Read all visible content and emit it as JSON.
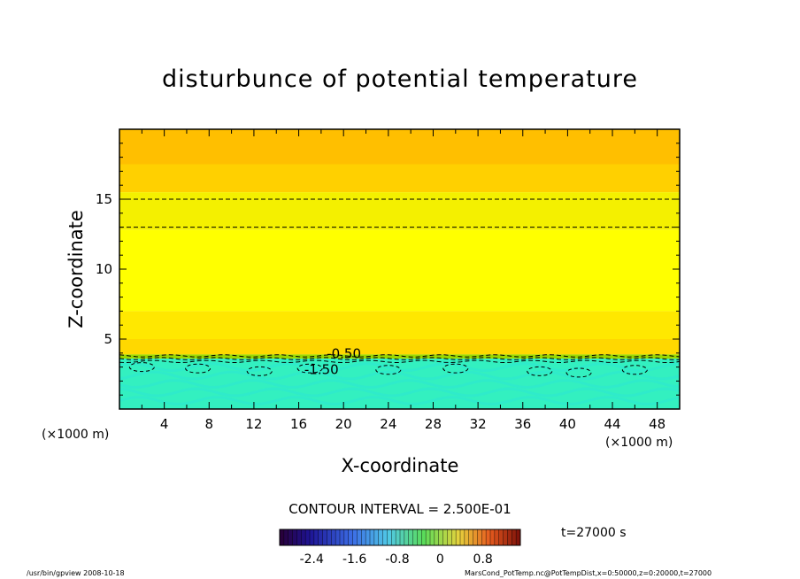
{
  "chart_data": {
    "type": "heatmap",
    "title": "disturbunce of potential temperature",
    "xlabel": "X-coordinate",
    "ylabel": "Z-coordinate",
    "x_unit": "(×1000 m)",
    "xlim": [
      0,
      50
    ],
    "ylim": [
      0,
      20
    ],
    "x_ticks": [
      4,
      8,
      12,
      16,
      20,
      24,
      28,
      32,
      36,
      40,
      44,
      48
    ],
    "y_ticks": [
      5,
      10,
      15
    ],
    "bands": [
      {
        "z_from": 17.5,
        "z_to": 20,
        "color": "#ffbf00"
      },
      {
        "z_from": 15.5,
        "z_to": 17.5,
        "color": "#ffd000"
      },
      {
        "z_from": 12.8,
        "z_to": 15.5,
        "color": "#f4f000"
      },
      {
        "z_from": 7.0,
        "z_to": 12.8,
        "color": "#ffff00"
      },
      {
        "z_from": 5.0,
        "z_to": 7.0,
        "color": "#ffe800"
      },
      {
        "z_from": 3.9,
        "z_to": 5.0,
        "color": "#ffd800"
      },
      {
        "z_from": 3.6,
        "z_to": 3.9,
        "color": "#9ad800"
      },
      {
        "z_from": 0,
        "z_to": 3.6,
        "color": "#33f0c0"
      }
    ],
    "contours": [
      {
        "z": 15.0,
        "style": "dashed"
      },
      {
        "z": 13.0,
        "style": "dashed"
      },
      {
        "z": 3.8,
        "style": "dashed"
      },
      {
        "z": 3.6,
        "style": "dashed"
      },
      {
        "z": 3.4,
        "style": "dashed"
      }
    ],
    "contour_labels": [
      "-0.50",
      "-1.50"
    ],
    "contour_interval": "CONTOUR INTERVAL = 2.500E-01",
    "time": "t=27000 s",
    "colorbar": {
      "ticks": [
        "-2.4",
        "-1.6",
        "-0.8",
        "0",
        "0.8"
      ],
      "tick_values": [
        -2.4,
        -1.6,
        -0.8,
        0,
        0.8
      ],
      "range": [
        -3.0,
        1.5
      ]
    }
  },
  "footer": {
    "left": "/usr/bin/gpview   2008-10-18",
    "right": "MarsCond_PotTemp.nc@PotTempDist,x=0:50000,z=0:20000,t=27000"
  }
}
